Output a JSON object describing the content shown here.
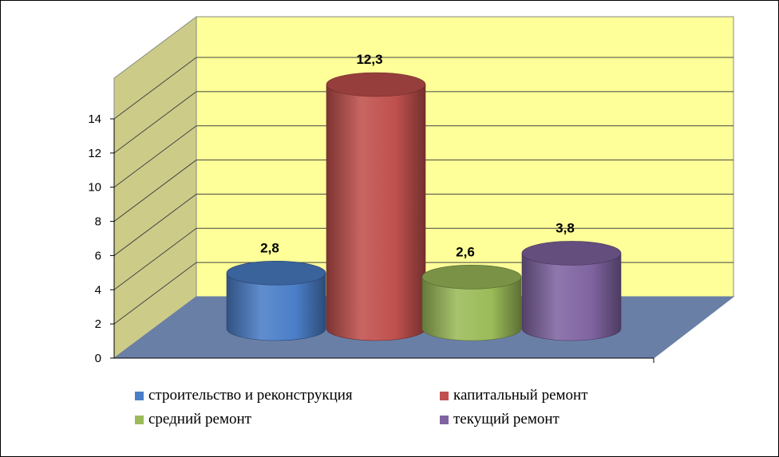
{
  "chart_data": {
    "type": "bar",
    "style": "3d-cylinder",
    "categories": [
      "строительство и реконструкция",
      "капитальный ремонт",
      "средний ремонт",
      "текущий ремонт"
    ],
    "values": [
      2.8,
      12.3,
      2.6,
      3.8
    ],
    "value_labels": [
      "2,8",
      "12,3",
      "2,6",
      "3,8"
    ],
    "colors": [
      "#4a7ec7",
      "#c0504d",
      "#9bbb59",
      "#8064a2"
    ],
    "ylim": [
      0,
      14
    ],
    "yticks": [
      "0",
      "2",
      "4",
      "6",
      "8",
      "10",
      "12",
      "14"
    ],
    "grid": true,
    "legend_position": "bottom",
    "wall_color": "#ffff99",
    "side_wall_color": "#cccc88",
    "floor_color": "#6a7fa6"
  }
}
